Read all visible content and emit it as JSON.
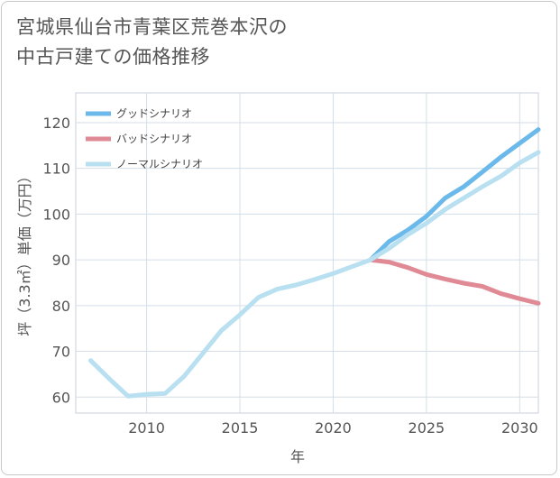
{
  "chart_data": {
    "type": "line",
    "title_line1": "宮城県仙台市青葉区荒巻本沢の",
    "title_line2": "中古戸建ての価格推移",
    "xlabel": "年",
    "ylabel": "坪（3.3㎡）単価（万円）",
    "xlim": [
      2006.2,
      2031
    ],
    "ylim": [
      56.5,
      126.5
    ],
    "x_ticks": [
      2010,
      2015,
      2020,
      2025,
      2030
    ],
    "y_ticks": [
      60,
      70,
      80,
      90,
      100,
      110,
      120
    ],
    "legend_position": "top-left",
    "series": [
      {
        "name": "グッドシナリオ",
        "color": "#6bb8ea",
        "x": [
          2022,
          2023,
          2024,
          2025,
          2026,
          2027,
          2028,
          2029,
          2030,
          2031
        ],
        "values": [
          90.0,
          94.0,
          96.5,
          99.5,
          103.5,
          106.0,
          109.2,
          112.5,
          115.5,
          118.5
        ]
      },
      {
        "name": "バッドシナリオ",
        "color": "#e08a96",
        "x": [
          2022,
          2023,
          2024,
          2025,
          2026,
          2027,
          2028,
          2029,
          2030,
          2031
        ],
        "values": [
          90.0,
          89.5,
          88.3,
          86.8,
          85.8,
          84.9,
          84.2,
          82.6,
          81.5,
          80.5
        ]
      },
      {
        "name": "ノーマルシナリオ",
        "color": "#b8e0f0",
        "x": [
          2007,
          2008,
          2009,
          2010,
          2011,
          2012,
          2013,
          2014,
          2015,
          2016,
          2017,
          2018,
          2019,
          2020,
          2021,
          2022,
          2023,
          2024,
          2025,
          2026,
          2027,
          2028,
          2029,
          2030,
          2031
        ],
        "values": [
          68.0,
          64.0,
          60.2,
          60.6,
          60.8,
          64.5,
          69.5,
          74.5,
          78.0,
          81.8,
          83.6,
          84.5,
          85.7,
          87.0,
          88.5,
          90.0,
          92.5,
          95.5,
          98.0,
          101.0,
          103.5,
          106.0,
          108.3,
          111.2,
          113.5
        ]
      }
    ]
  }
}
